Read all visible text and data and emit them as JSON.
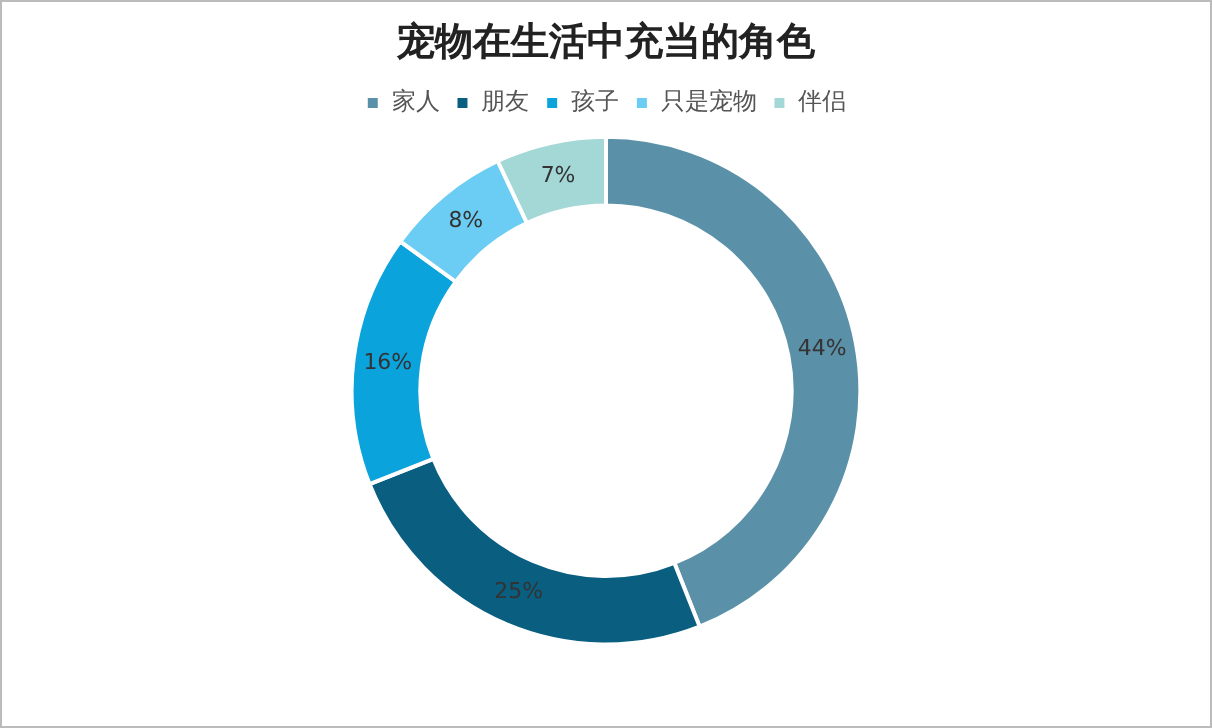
{
  "chart_data": {
    "type": "donut",
    "title": "宠物在生活中充当的角色",
    "categories": [
      "家人",
      "朋友",
      "孩子",
      "只是宠物",
      "伴侣"
    ],
    "values": [
      44,
      25,
      16,
      8,
      7
    ],
    "value_labels": [
      "44%",
      "25%",
      "16%",
      "8%",
      "7%"
    ],
    "colors": [
      "#5b91a8",
      "#0a5e80",
      "#0aa3dc",
      "#6bcdf3",
      "#a3d8d6"
    ],
    "legend": "top"
  }
}
